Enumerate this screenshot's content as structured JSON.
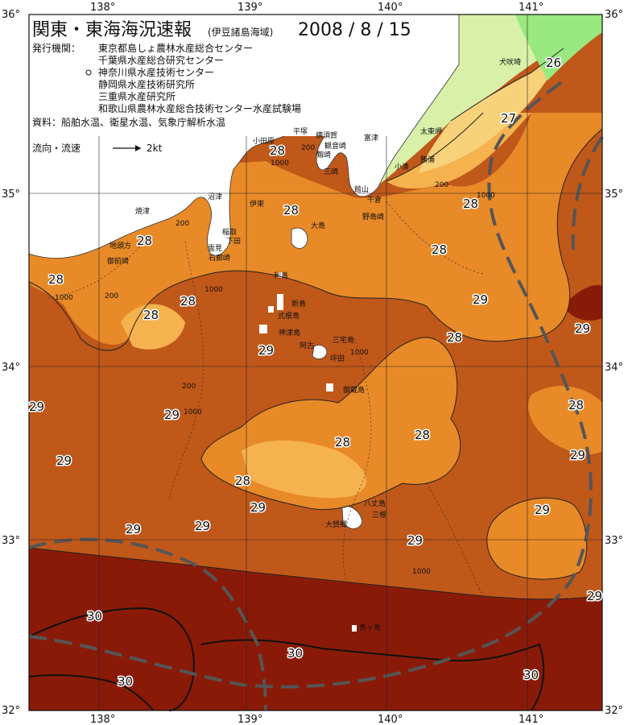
{
  "header": {
    "title": "関東・東海海況速報",
    "area": "(伊豆諸島海域)",
    "date": "2008 / 8 / 15"
  },
  "issuers": {
    "label": "発行機関：",
    "items": [
      "東京都島しょ農林水産総合センター",
      "千葉県水産総合研究センター",
      "神奈川県水産技術センター",
      "静岡県水産技術研究所",
      "三重県水産研究所",
      "和歌山県農林水産総合技術センター水産試験場"
    ],
    "sources": "資料：船舶水温、衛星水温、気象庁解析水温"
  },
  "legend": {
    "current_label": "流向・流速",
    "speed_label": "2kt"
  },
  "axes": {
    "lon_labels": [
      "138°",
      "139°",
      "140°",
      "141°"
    ],
    "lat_labels": [
      "36°",
      "35°",
      "34°",
      "33°",
      "32°"
    ]
  },
  "colors": {
    "t30": "#8a1a08",
    "t29": "#c0581a",
    "t28": "#e88a28",
    "t27": "#f6b24e",
    "t26": "#f8d27a",
    "cold": "#d8f0a8",
    "colder": "#9ae880",
    "land": "#ffffff"
  },
  "isotherms": [
    {
      "v": "26"
    },
    {
      "v": "27"
    },
    {
      "v": "28"
    },
    {
      "v": "28"
    },
    {
      "v": "28"
    },
    {
      "v": "28"
    },
    {
      "v": "28"
    },
    {
      "v": "28"
    },
    {
      "v": "28"
    },
    {
      "v": "28"
    },
    {
      "v": "28"
    },
    {
      "v": "28"
    },
    {
      "v": "28"
    },
    {
      "v": "28"
    },
    {
      "v": "28"
    },
    {
      "v": "29"
    },
    {
      "v": "29"
    },
    {
      "v": "29"
    },
    {
      "v": "29"
    },
    {
      "v": "29"
    },
    {
      "v": "29"
    },
    {
      "v": "29"
    },
    {
      "v": "29"
    },
    {
      "v": "29"
    },
    {
      "v": "29"
    },
    {
      "v": "29"
    },
    {
      "v": "29"
    },
    {
      "v": "29"
    },
    {
      "v": "30"
    },
    {
      "v": "30"
    },
    {
      "v": "30"
    },
    {
      "v": "30"
    }
  ],
  "depth_labels": [
    "200",
    "1000",
    "200",
    "1000",
    "200",
    "1000",
    "200",
    "1000",
    "1000",
    "200",
    "1000",
    "1000"
  ],
  "places": [
    "犬吠埼",
    "太東岬",
    "勝浦",
    "小湊",
    "館山",
    "千倉",
    "野島崎",
    "平塚",
    "横須賀",
    "観音崎",
    "富津",
    "剱崎",
    "三崎",
    "小田原",
    "沼津",
    "伊東",
    "大島",
    "稲取",
    "下田",
    "石廊崎",
    "雲見",
    "焼津",
    "地頭方",
    "御前崎",
    "利島",
    "新島",
    "式根島",
    "神津島",
    "三宅島",
    "御蔵島",
    "坪田",
    "阿古",
    "八丈島",
    "三根",
    "大賀郷",
    "青ヶ島"
  ]
}
